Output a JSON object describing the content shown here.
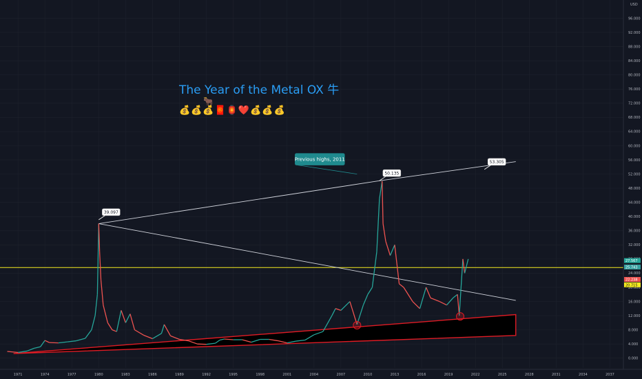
{
  "title": "The Year of the Metal OX 牛",
  "ox_emoji": "🐂",
  "emoji_row": "💰💰💰🧧🏮❤️💰💰💰",
  "currency_label": "USD",
  "colors": {
    "background": "#131722",
    "up": "#26a69a",
    "down": "#ef5350",
    "trend_red": "#e01b24",
    "horizontal_line": "#f5eb1e",
    "callout": "#1f8a8e",
    "trend_white": "#d1d4dc"
  },
  "chart_data": {
    "type": "line",
    "title": "The Year of the Metal OX 牛",
    "x_ticks": [
      "1971",
      "1974",
      "1977",
      "1980",
      "1983",
      "1986",
      "1989",
      "1992",
      "1995",
      "1998",
      "2001",
      "2004",
      "2007",
      "2010",
      "2013",
      "2016",
      "2019",
      "2022",
      "2025",
      "2028",
      "2031",
      "2034",
      "2037"
    ],
    "y_ticks": [
      0,
      4,
      8,
      12,
      16,
      20,
      24,
      28,
      32,
      36,
      40,
      44,
      48,
      52,
      56,
      60,
      64,
      68,
      72,
      76,
      80,
      84,
      88,
      92,
      96
    ],
    "ylim": [
      -2,
      100
    ],
    "xlim": [
      1969.3,
      2038.5
    ],
    "series": [
      {
        "x": [
          1969.8,
          1971.0,
          1972.0,
          1972.8,
          1973.5,
          1974.0,
          1974.5,
          1975.5,
          1976.5,
          1977.5,
          1978.5,
          1979.2,
          1979.6,
          1979.85,
          1980.0,
          1980.1,
          1980.25,
          1980.5,
          1981.0,
          1981.5,
          1982.0,
          1982.5,
          1983.0,
          1983.5,
          1984.0,
          1985.0,
          1986.0,
          1987.0,
          1987.3,
          1988.0,
          1989.0,
          1990.0,
          1991.0,
          1992.0,
          1993.0,
          1993.5,
          1994.0,
          1995.0,
          1996.0,
          1997.0,
          1998.0,
          1999.0,
          2000.0,
          2001.0,
          2002.0,
          2003.0,
          2004.0,
          2005.0,
          2006.0,
          2006.4,
          2007.0,
          2008.0,
          2008.8,
          2009.5,
          2010.0,
          2010.5,
          2011.0,
          2011.3,
          2011.6,
          2011.7,
          2012.0,
          2012.5,
          2013.0,
          2013.5,
          2014.0,
          2015.0,
          2015.8,
          2016.5,
          2017.0,
          2018.0,
          2018.8,
          2019.5,
          2020.0,
          2020.2,
          2020.6,
          2020.8,
          2021.0,
          2021.2
        ],
        "y": [
          1.9,
          1.6,
          2.0,
          2.8,
          3.2,
          5.0,
          4.4,
          4.3,
          4.6,
          4.9,
          5.6,
          8.0,
          12.0,
          18.0,
          38.0,
          30.0,
          22.0,
          15.0,
          10.0,
          8.0,
          7.5,
          13.5,
          10.0,
          12.5,
          8.0,
          6.5,
          5.5,
          7.0,
          9.5,
          6.3,
          5.3,
          4.9,
          4.0,
          3.9,
          4.2,
          5.1,
          5.4,
          5.2,
          5.2,
          4.5,
          5.3,
          5.3,
          4.9,
          4.3,
          4.8,
          5.1,
          6.6,
          7.5,
          12.0,
          14.0,
          13.5,
          16.0,
          9.5,
          15.0,
          18.0,
          20.0,
          30.0,
          45.0,
          50.0,
          38.0,
          33.0,
          29.0,
          32.0,
          21.0,
          20.0,
          16.0,
          14.0,
          20.0,
          17.0,
          16.0,
          15.0,
          17.0,
          18.0,
          12.0,
          28.0,
          24.0,
          26.0,
          28.0
        ]
      }
    ],
    "annotations": [
      {
        "label": "39.097",
        "x": 1980.0,
        "y": 39.097
      },
      {
        "label": "50.135",
        "x": 2011.3,
        "y": 50.135
      },
      {
        "label": "53.305",
        "x": 2023.0,
        "y": 53.305
      },
      {
        "label": "Previous highs, 2011",
        "x": 2008.8,
        "y": 52.0
      }
    ],
    "trendlines": [
      {
        "name": "upper-resistance",
        "x": [
          1980.0,
          2011.3,
          2026.5
        ],
        "y": [
          38.0,
          50.1,
          55.5
        ]
      },
      {
        "name": "descending",
        "x": [
          1980.0,
          2026.5
        ],
        "y": [
          38.0,
          16.3
        ]
      },
      {
        "name": "support-upper",
        "x": [
          1970.5,
          2026.5
        ],
        "y": [
          1.3,
          12.3
        ]
      },
      {
        "name": "support-lower",
        "x": [
          1970.5,
          2026.5
        ],
        "y": [
          1.3,
          6.4
        ]
      },
      {
        "name": "horizontal",
        "y": 25.6
      }
    ],
    "highlight_circles": [
      {
        "x": 2008.8,
        "y": 9.3
      },
      {
        "x": 2020.3,
        "y": 11.8
      }
    ],
    "price_labels": [
      {
        "label": "27.567",
        "y": 27.567,
        "color": "#26a69a"
      },
      {
        "label": "25.743",
        "y": 25.743,
        "color": "#37a0a0"
      },
      {
        "label": "22.238",
        "y": 22.238,
        "color": "#ef5350"
      },
      {
        "label": "20.715",
        "y": 20.715,
        "color": "#f5eb1e"
      }
    ]
  }
}
